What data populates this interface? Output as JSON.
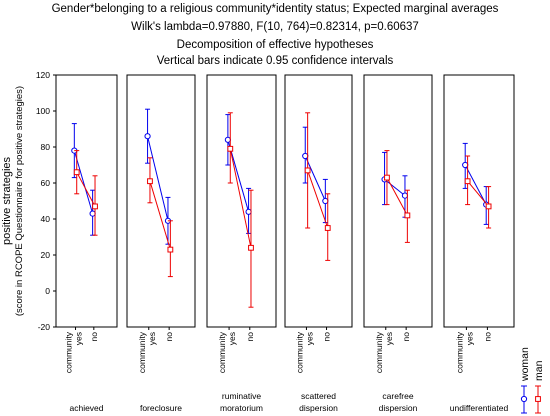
{
  "chart_data": {
    "type": "line",
    "title_lines": [
      "Gender*belonging to a religious community*identity status; Expected marginal averages",
      "Wilk's lambda=0.97880, F(10, 764)=0.82314, p=0.60637",
      "Decomposition of effective hypotheses",
      "Vertical bars indicate 0.95 confidence intervals"
    ],
    "ylabel_lines": [
      "positive strategies",
      "(score in RCOPE Questionnaire for positive strategies)"
    ],
    "ylim": [
      -20,
      120
    ],
    "yticks": [
      "-20",
      "0",
      "20",
      "40",
      "60",
      "80",
      "100",
      "120"
    ],
    "categories": [
      "community yes",
      "no"
    ],
    "category_label_parts": [
      "community",
      "yes",
      "no"
    ],
    "groups": [
      {
        "lines": [
          "achieved"
        ]
      },
      {
        "lines": [
          "foreclosure"
        ]
      },
      {
        "lines": [
          "ruminative",
          "moratorium"
        ]
      },
      {
        "lines": [
          "scattered",
          "dispersion"
        ]
      },
      {
        "lines": [
          "carefree",
          "dispersion"
        ]
      },
      {
        "lines": [
          "undifferentiated"
        ]
      }
    ],
    "series": [
      {
        "name": "woman",
        "color": "#0000ee",
        "marker": "circle",
        "values": [
          [
            78,
            43
          ],
          [
            86,
            39
          ],
          [
            84,
            44
          ],
          [
            75,
            50
          ],
          [
            62,
            53
          ],
          [
            70,
            48
          ]
        ],
        "ci": [
          [
            [
              63,
              93
            ],
            [
              31,
              56
            ]
          ],
          [
            [
              71,
              101
            ],
            [
              26,
              52
            ]
          ],
          [
            [
              70,
              98
            ],
            [
              32,
              57
            ]
          ],
          [
            [
              60,
              91
            ],
            [
              38,
              62
            ]
          ],
          [
            [
              48,
              77
            ],
            [
              41,
              64
            ]
          ],
          [
            [
              57,
              82
            ],
            [
              37,
              58
            ]
          ]
        ]
      },
      {
        "name": "man",
        "color": "#ee0000",
        "marker": "square",
        "values": [
          [
            66,
            47
          ],
          [
            61,
            23
          ],
          [
            79,
            24
          ],
          [
            67,
            35
          ],
          [
            63,
            42
          ],
          [
            61,
            47
          ]
        ],
        "ci": [
          [
            [
              54,
              78
            ],
            [
              31,
              64
            ]
          ],
          [
            [
              49,
              74
            ],
            [
              8,
              39
            ]
          ],
          [
            [
              60,
              99
            ],
            [
              -9,
              56
            ]
          ],
          [
            [
              35,
              99
            ],
            [
              17,
              54
            ]
          ],
          [
            [
              48,
              78
            ],
            [
              27,
              56
            ]
          ],
          [
            [
              48,
              75
            ],
            [
              35,
              58
            ]
          ]
        ]
      }
    ]
  }
}
